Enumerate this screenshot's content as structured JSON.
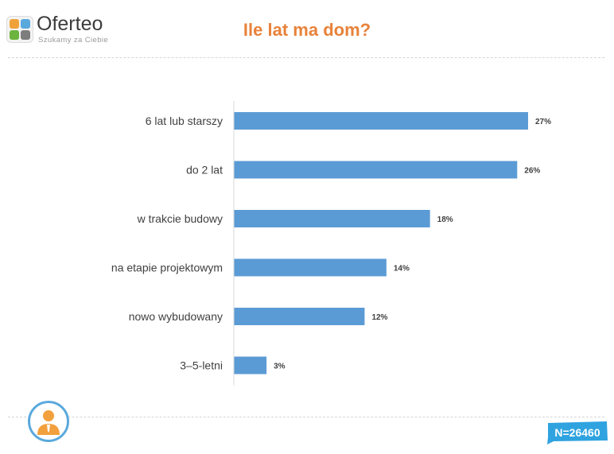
{
  "header": {
    "logo_name": "Oferteo",
    "logo_tagline": "Szukamy za Ciebie",
    "title": "Ile lat ma dom?"
  },
  "footer": {
    "sample_size": "N=26460"
  },
  "colors": {
    "bar": "#5b9bd5",
    "title": "#e8823a",
    "badge": "#2fa3e0",
    "avatar_ring": "#5aa9dd",
    "avatar_figure": "#f2a03d"
  },
  "chart_data": {
    "type": "bar",
    "orientation": "horizontal",
    "title": "Ile lat ma dom?",
    "categories": [
      "6 lat lub starszy",
      "do 2 lat",
      "w trakcie budowy",
      "na etapie projektowym",
      "nowo wybudowany",
      "3–5-letni"
    ],
    "values": [
      27,
      26,
      18,
      14,
      12,
      3
    ],
    "value_labels": [
      "27%",
      "26%",
      "18%",
      "14%",
      "12%",
      "3%"
    ],
    "unit": "%",
    "xlim": [
      0,
      27
    ],
    "grid": false,
    "legend": "none"
  }
}
